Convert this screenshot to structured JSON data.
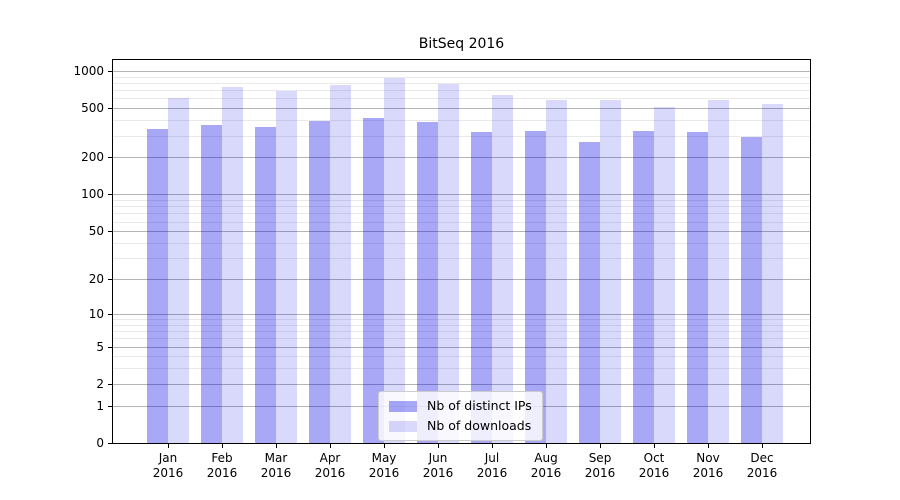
{
  "background": "#ffffff",
  "chart_data": {
    "type": "bar",
    "title": "BitSeq 2016",
    "categories": [
      "Jan\n2016",
      "Feb\n2016",
      "Mar\n2016",
      "Apr\n2016",
      "May\n2016",
      "Jun\n2016",
      "Jul\n2016",
      "Aug\n2016",
      "Sep\n2016",
      "Oct\n2016",
      "Nov\n2016",
      "Dec\n2016"
    ],
    "series": [
      {
        "name": "Nb of distinct IPs",
        "color": "rgba(0,0,230,0.34)",
        "values": [
          340,
          365,
          350,
          395,
          415,
          390,
          320,
          325,
          268,
          325,
          320,
          292
        ]
      },
      {
        "name": "Nb of downloads",
        "color": "rgba(0,0,230,0.15)",
        "values": [
          610,
          745,
          690,
          770,
          875,
          780,
          640,
          580,
          582,
          515,
          582,
          540
        ]
      }
    ],
    "yscale": "log10(value+1)",
    "ylim": [
      0,
      1225
    ],
    "yticks": [
      1000,
      500,
      200,
      100,
      50,
      20,
      10,
      5,
      2,
      1,
      0
    ],
    "ytick_labels": [
      "1000",
      "500",
      "200",
      "100",
      "50",
      "20",
      "10",
      "5",
      "2",
      "1",
      "0"
    ],
    "yminor": [
      3,
      4,
      6,
      7,
      8,
      9,
      30,
      40,
      60,
      70,
      80,
      90,
      300,
      400,
      600,
      700,
      800,
      900
    ],
    "grid": "both",
    "legend": {
      "position": "lower center",
      "entries": [
        "Nb of distinct IPs",
        "Nb of downloads"
      ]
    },
    "colors": {
      "grid_major": "#b4b4b4",
      "grid_minor": "#e9e9e9",
      "spine": "#000000",
      "text": "#000000",
      "legend_border": "#cccccc",
      "legend_bg": "rgba(255,255,255,0.8)"
    }
  }
}
